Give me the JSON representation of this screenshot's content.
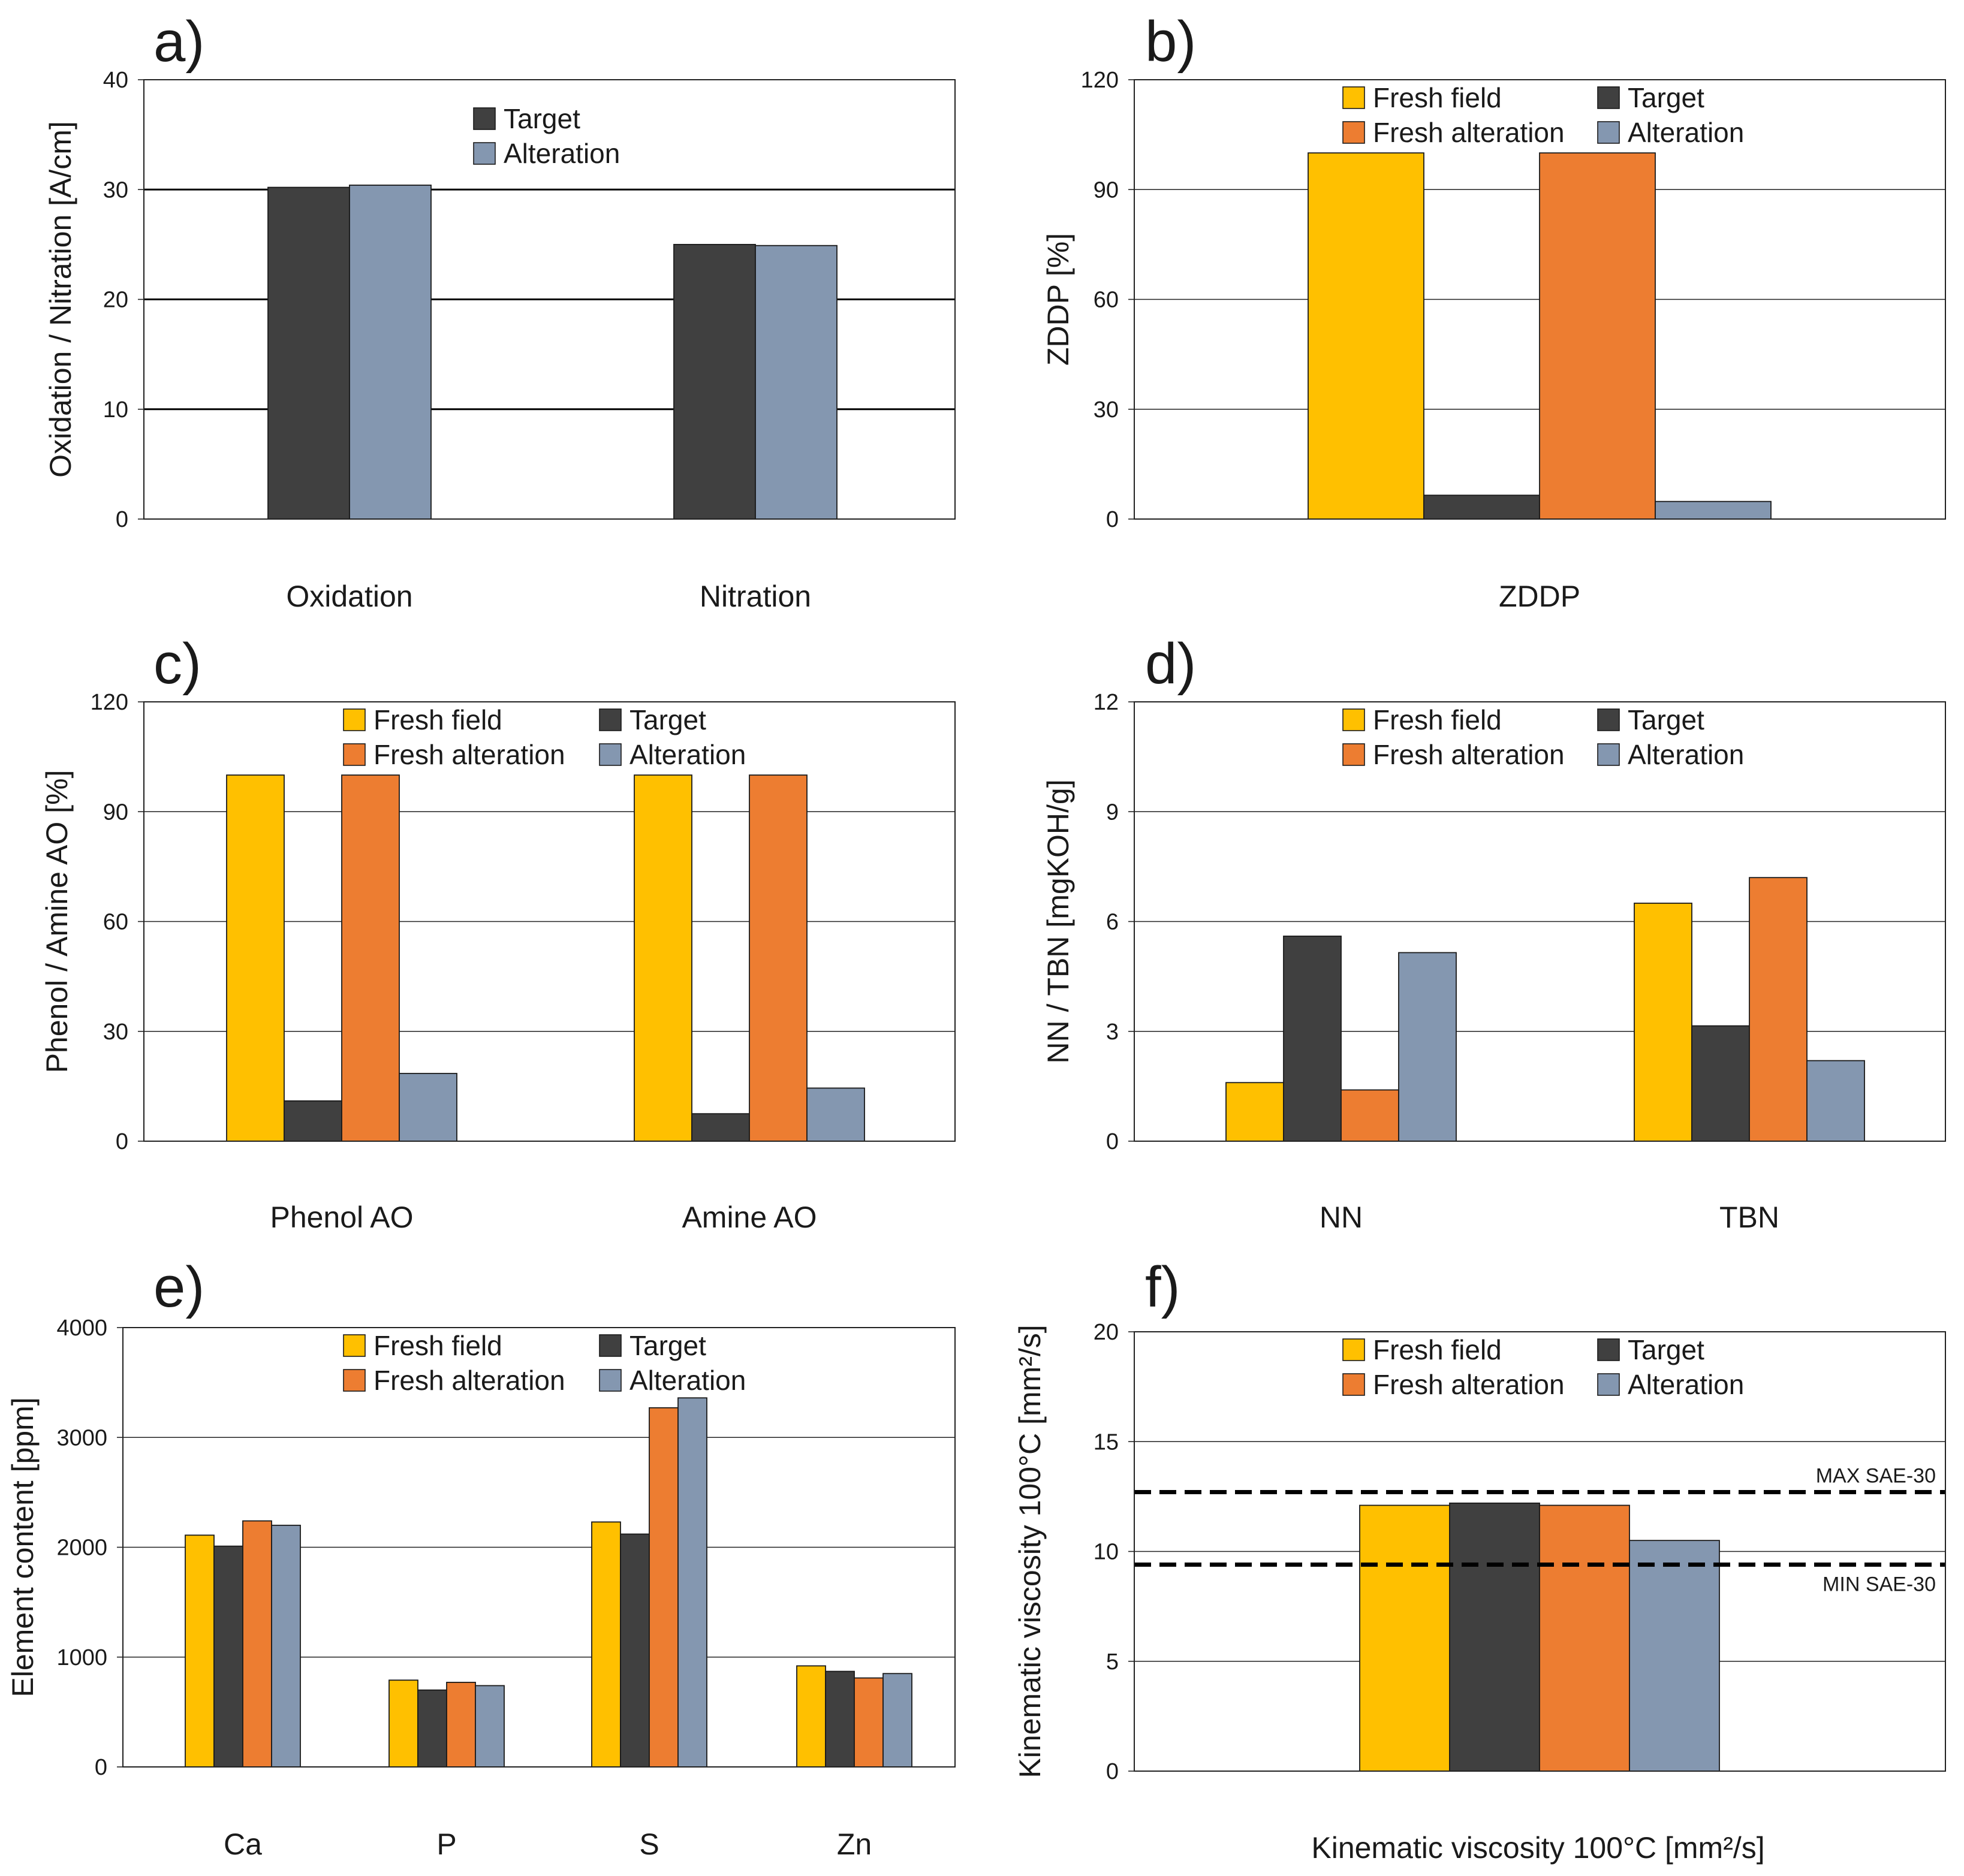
{
  "colors": {
    "fresh_field": "#FFC000",
    "target": "#404040",
    "fresh_alteration": "#ED7D31",
    "alteration": "#8497B0"
  },
  "chart_data": [
    {
      "id": "a",
      "type": "bar",
      "panel_label": "a)",
      "ylabel": "Oxidation / Nitration [A/cm]",
      "ylim": [
        0,
        40
      ],
      "yticks": [
        0,
        10,
        20,
        30,
        40
      ],
      "categories": [
        "Oxidation",
        "Nitration"
      ],
      "xlabel": "",
      "series": [
        {
          "name": "Target",
          "color_key": "target",
          "values": [
            30.2,
            25.0
          ]
        },
        {
          "name": "Alteration",
          "color_key": "alteration",
          "values": [
            30.4,
            24.9
          ]
        }
      ],
      "legend": [
        "Target",
        "Alteration"
      ],
      "legend_position": "top-center",
      "grid": true
    },
    {
      "id": "b",
      "type": "bar",
      "panel_label": "b)",
      "ylabel": "ZDDP [%]",
      "ylim": [
        0,
        120
      ],
      "yticks": [
        0,
        30,
        60,
        90,
        120
      ],
      "categories": [
        "ZDDP"
      ],
      "xlabel": "",
      "series": [
        {
          "name": "Fresh field",
          "color_key": "fresh_field",
          "values": [
            100
          ]
        },
        {
          "name": "Target",
          "color_key": "target",
          "values": [
            6.5
          ]
        },
        {
          "name": "Fresh alteration",
          "color_key": "fresh_alteration",
          "values": [
            100
          ]
        },
        {
          "name": "Alteration",
          "color_key": "alteration",
          "values": [
            4.8
          ]
        }
      ],
      "legend": [
        "Fresh field",
        "Target",
        "Fresh alteration",
        "Alteration"
      ],
      "legend_position": "top-center",
      "grid": true
    },
    {
      "id": "c",
      "type": "bar",
      "panel_label": "c)",
      "ylabel": "Phenol / Amine AO [%]",
      "ylim": [
        0,
        120
      ],
      "yticks": [
        0,
        30,
        60,
        90,
        120
      ],
      "categories": [
        "Phenol AO",
        "Amine AO"
      ],
      "xlabel": "",
      "series": [
        {
          "name": "Fresh field",
          "color_key": "fresh_field",
          "values": [
            100,
            100
          ]
        },
        {
          "name": "Target",
          "color_key": "target",
          "values": [
            11,
            7.5
          ]
        },
        {
          "name": "Fresh alteration",
          "color_key": "fresh_alteration",
          "values": [
            100,
            100
          ]
        },
        {
          "name": "Alteration",
          "color_key": "alteration",
          "values": [
            18.5,
            14.5
          ]
        }
      ],
      "legend": [
        "Fresh field",
        "Target",
        "Fresh alteration",
        "Alteration"
      ],
      "legend_position": "top-center",
      "grid": true
    },
    {
      "id": "d",
      "type": "bar",
      "panel_label": "d)",
      "ylabel": "NN / TBN [mgKOH/g]",
      "ylim": [
        0,
        12
      ],
      "yticks": [
        0,
        3,
        6,
        9,
        12
      ],
      "categories": [
        "NN",
        "TBN"
      ],
      "xlabel": "",
      "series": [
        {
          "name": "Fresh field",
          "color_key": "fresh_field",
          "values": [
            1.6,
            6.5
          ]
        },
        {
          "name": "Target",
          "color_key": "target",
          "values": [
            5.6,
            3.15
          ]
        },
        {
          "name": "Fresh alteration",
          "color_key": "fresh_alteration",
          "values": [
            1.4,
            7.2
          ]
        },
        {
          "name": "Alteration",
          "color_key": "alteration",
          "values": [
            5.15,
            2.2
          ]
        }
      ],
      "legend": [
        "Fresh field",
        "Target",
        "Fresh alteration",
        "Alteration"
      ],
      "legend_position": "top-center",
      "grid": true
    },
    {
      "id": "e",
      "type": "bar",
      "panel_label": "e)",
      "ylabel": "Element content [ppm]",
      "ylim": [
        0,
        4000
      ],
      "yticks": [
        0,
        1000,
        2000,
        3000,
        4000
      ],
      "categories": [
        "Ca",
        "P",
        "S",
        "Zn"
      ],
      "xlabel": "",
      "series": [
        {
          "name": "Fresh field",
          "color_key": "fresh_field",
          "values": [
            2110,
            790,
            2230,
            920
          ]
        },
        {
          "name": "Target",
          "color_key": "target",
          "values": [
            2010,
            700,
            2120,
            870
          ]
        },
        {
          "name": "Fresh alteration",
          "color_key": "fresh_alteration",
          "values": [
            2240,
            770,
            3270,
            810
          ]
        },
        {
          "name": "Alteration",
          "color_key": "alteration",
          "values": [
            2200,
            740,
            3360,
            850
          ]
        }
      ],
      "legend": [
        "Fresh field",
        "Target",
        "Fresh alteration",
        "Alteration"
      ],
      "legend_position": "top-center",
      "grid": true
    },
    {
      "id": "f",
      "type": "bar",
      "panel_label": "f)",
      "ylabel": "Kinematic viscosity 100°C [mm²/s]",
      "ylim": [
        0,
        20
      ],
      "yticks": [
        0,
        5,
        10,
        15,
        20
      ],
      "categories": [
        ""
      ],
      "xlabel": "Kinematic viscosity 100°C [mm²/s]",
      "series": [
        {
          "name": "Fresh field",
          "color_key": "fresh_field",
          "values": [
            12.1
          ]
        },
        {
          "name": "Target",
          "color_key": "target",
          "values": [
            12.2
          ]
        },
        {
          "name": "Fresh alteration",
          "color_key": "fresh_alteration",
          "values": [
            12.1
          ]
        },
        {
          "name": "Alteration",
          "color_key": "alteration",
          "values": [
            10.5
          ]
        }
      ],
      "legend": [
        "Fresh field",
        "Target",
        "Fresh alteration",
        "Alteration"
      ],
      "legend_position": "top-center",
      "grid": true,
      "reference_lines": [
        {
          "label": "MAX SAE-30",
          "value": 12.7,
          "label_side": "above"
        },
        {
          "label": "MIN SAE-30",
          "value": 9.4,
          "label_side": "below"
        }
      ]
    }
  ]
}
